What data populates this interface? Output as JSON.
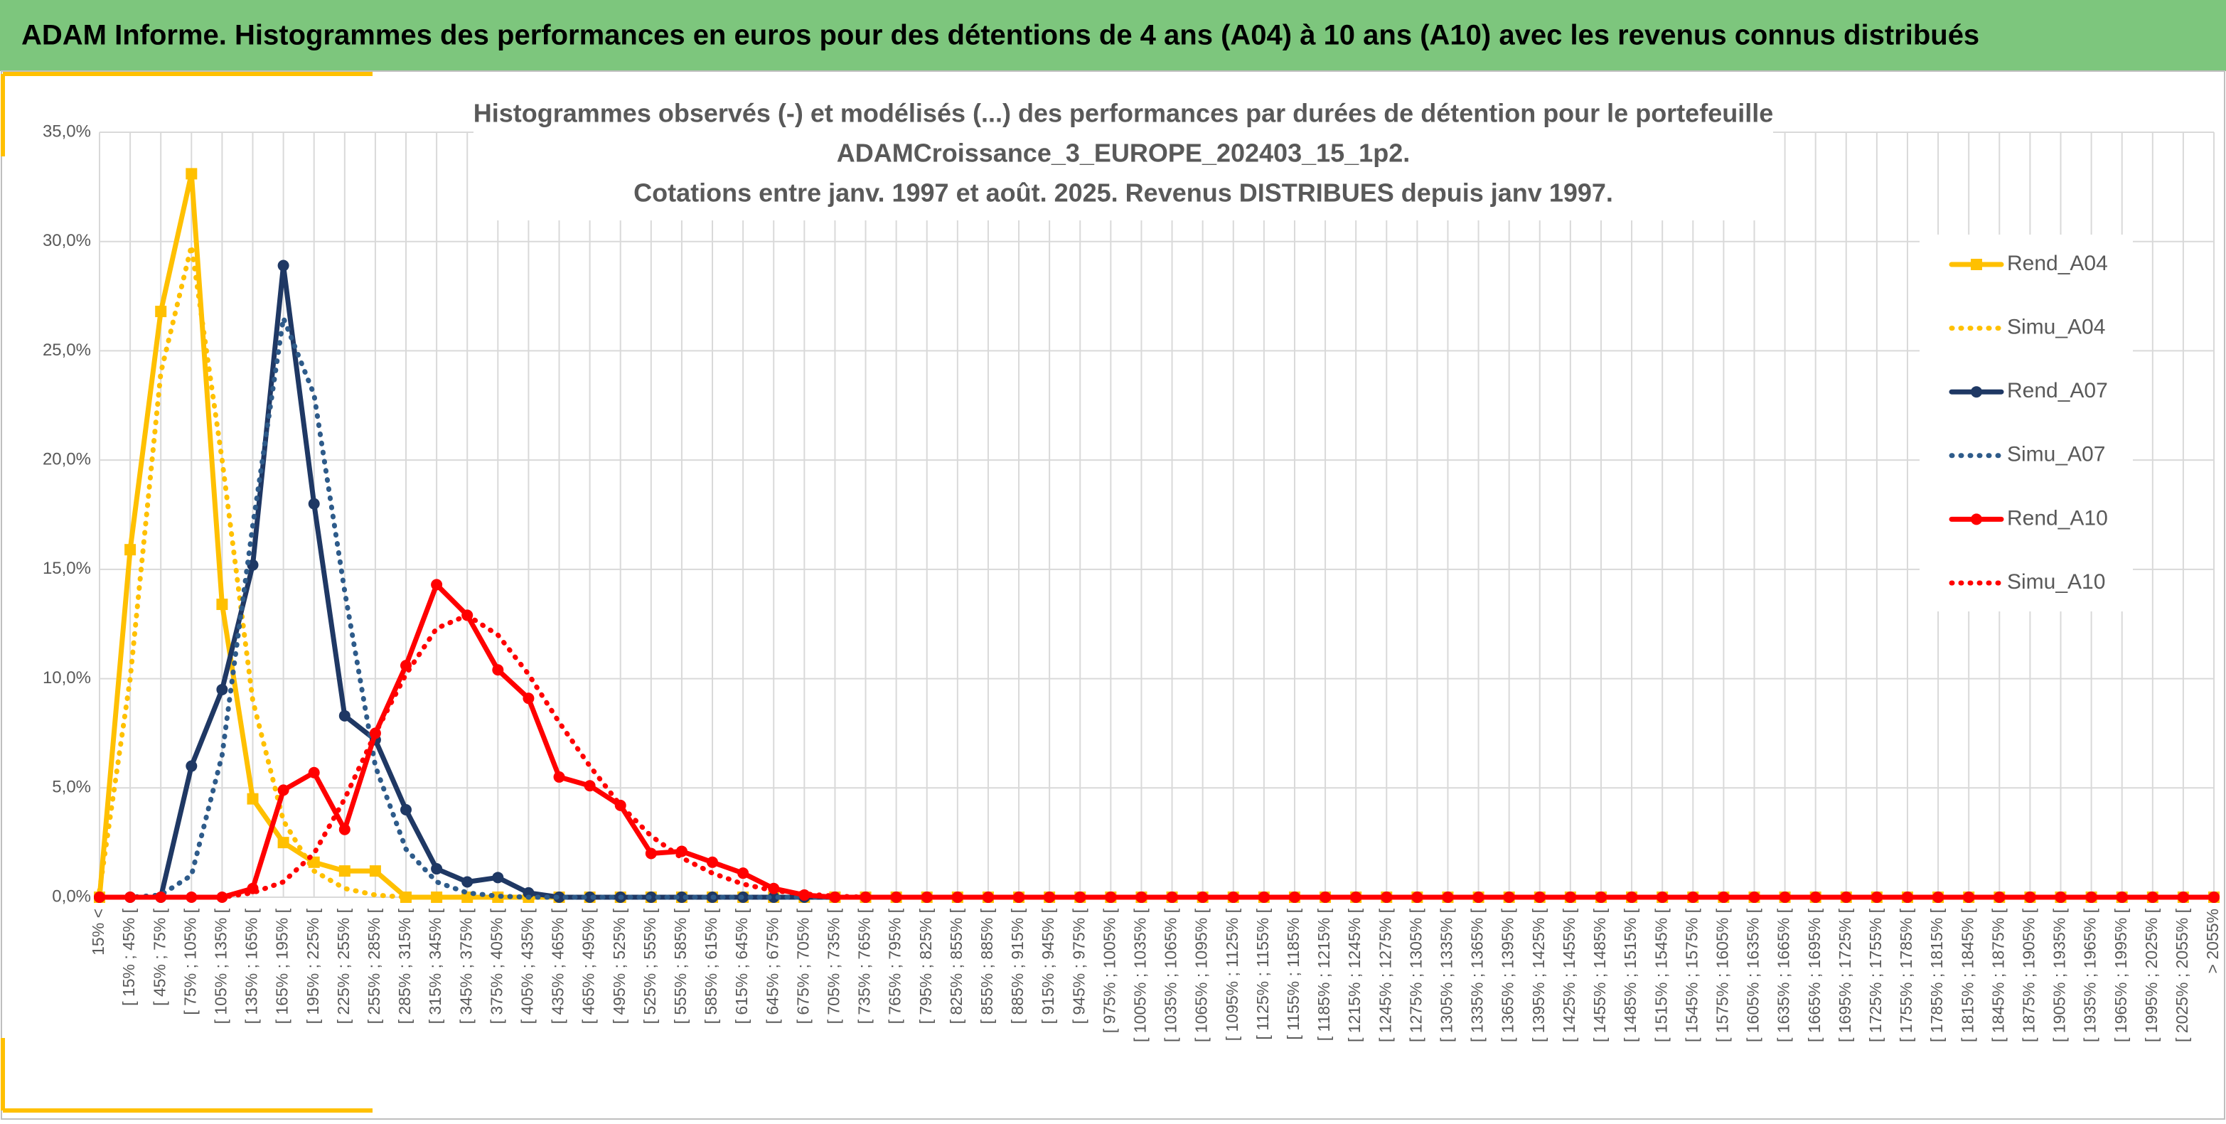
{
  "header": {
    "title": "ADAM Informe. Histogrammes des performances en euros pour des détentions de 4 ans (A04) à 10 ans (A10) avec les revenus connus distribués"
  },
  "chart_data": {
    "type": "line",
    "title": [
      "Histogrammes observés (-) et modélisés (...) des performances par durées de détention pour le portefeuille",
      "ADAMCroissance_3_EUROPE_202403_15_1p2.",
      "Cotations entre janv. 1997 et août. 2025. Revenus DISTRIBUES depuis janv 1997."
    ],
    "categories": [
      "15% <",
      "[ 15% ; 45% [",
      "[ 45% ; 75% [",
      "[ 75% ; 105% [",
      "[ 105% ; 135% [",
      "[ 135% ; 165% [",
      "[ 165% ; 195% [",
      "[ 195% ; 225% [",
      "[ 225% ; 255% [",
      "[ 255% ; 285% [",
      "[ 285% ; 315% [",
      "[ 315% ; 345% [",
      "[ 345% ; 375% [",
      "[ 375% ; 405% [",
      "[ 405% ; 435% [",
      "[ 435% ; 465% [",
      "[ 465% ; 495% [",
      "[ 495% ; 525% [",
      "[ 525% ; 555% [",
      "[ 555% ; 585% [",
      "[ 585% ; 615% [",
      "[ 615% ; 645% [",
      "[ 645% ; 675% [",
      "[ 675% ; 705% [",
      "[ 705% ; 735% [",
      "[ 735% ; 765% [",
      "[ 765% ; 795% [",
      "[ 795% ; 825% [",
      "[ 825% ; 855% [",
      "[ 855% ; 885% [",
      "[ 885% ; 915% [",
      "[ 915% ; 945% [",
      "[ 945% ; 975% [",
      "[ 975% ; 1005% [",
      "[ 1005% ; 1035% [",
      "[ 1035% ; 1065% [",
      "[ 1065% ; 1095% [",
      "[ 1095% ; 1125% [",
      "[ 1125% ; 1155% [",
      "[ 1155% ; 1185% [",
      "[ 1185% ; 1215% [",
      "[ 1215% ; 1245% [",
      "[ 1245% ; 1275% [",
      "[ 1275% ; 1305% [",
      "[ 1305% ; 1335% [",
      "[ 1335% ; 1365% [",
      "[ 1365% ; 1395% [",
      "[ 1395% ; 1425% [",
      "[ 1425% ; 1455% [",
      "[ 1455% ; 1485% [",
      "[ 1485% ; 1515% [",
      "[ 1515% ; 1545% [",
      "[ 1545% ; 1575% [",
      "[ 1575% ; 1605% [",
      "[ 1605% ; 1635% [",
      "[ 1635% ; 1665% [",
      "[ 1665% ; 1695% [",
      "[ 1695% ; 1725% [",
      "[ 1725% ; 1755% [",
      "[ 1755% ; 1785% [",
      "[ 1785% ; 1815% [",
      "[ 1815% ; 1845% [",
      "[ 1845% ; 1875% [",
      "[ 1875% ; 1905% [",
      "[ 1905% ; 1935% [",
      "[ 1935% ; 1965% [",
      "[ 1965% ; 1995% [",
      "[ 1995% ; 2025% [",
      "[ 2025% ; 2055% [",
      "> 2055%"
    ],
    "series": [
      {
        "name": "Rend_A04",
        "color": "#ffc000",
        "dash": "solid",
        "marker": "square",
        "values": [
          0,
          15.9,
          26.8,
          33.1,
          13.4,
          4.5,
          2.5,
          1.6,
          1.2,
          1.2,
          0,
          0,
          0,
          0,
          0,
          0,
          0,
          0,
          0,
          0,
          0,
          0,
          0,
          0,
          0,
          0,
          0,
          0,
          0,
          0,
          0,
          0,
          0,
          0,
          0,
          0,
          0,
          0,
          0,
          0,
          0,
          0,
          0,
          0,
          0,
          0,
          0,
          0,
          0,
          0,
          0,
          0,
          0,
          0,
          0,
          0,
          0,
          0,
          0,
          0,
          0,
          0,
          0,
          0,
          0,
          0,
          0,
          0,
          0,
          0
        ]
      },
      {
        "name": "Simu_A04",
        "color": "#ffc000",
        "dash": "dotted",
        "values": [
          0.3,
          10,
          24,
          29.8,
          20,
          9,
          3.5,
          1.2,
          0.4,
          0.1,
          0,
          0,
          0,
          0,
          0,
          0,
          0,
          0,
          0,
          0,
          0,
          0,
          0,
          0,
          0,
          0,
          0,
          0,
          0,
          0,
          0,
          0,
          0,
          0,
          0,
          0,
          0,
          0,
          0,
          0,
          0,
          0,
          0,
          0,
          0,
          0,
          0,
          0,
          0,
          0,
          0,
          0,
          0,
          0,
          0,
          0,
          0,
          0,
          0,
          0,
          0,
          0,
          0,
          0,
          0,
          0,
          0,
          0,
          0,
          0
        ]
      },
      {
        "name": "Rend_A07",
        "color": "#1f3864",
        "dash": "solid",
        "marker": "circle",
        "values": [
          0,
          0,
          0,
          6.0,
          9.5,
          15.2,
          28.9,
          18.0,
          8.3,
          7.2,
          4.0,
          1.3,
          0.7,
          0.9,
          0.2,
          0,
          0,
          0,
          0,
          0,
          0,
          0,
          0,
          0,
          0,
          0,
          0,
          0,
          0,
          0,
          0,
          0,
          0,
          0,
          0,
          0,
          0,
          0,
          0,
          0,
          0,
          0,
          0,
          0,
          0,
          0,
          0,
          0,
          0,
          0,
          0,
          0,
          0,
          0,
          0,
          0,
          0,
          0,
          0,
          0,
          0,
          0,
          0,
          0,
          0,
          0,
          0,
          0,
          0,
          0
        ]
      },
      {
        "name": "Simu_A07",
        "color": "#2e5b8a",
        "dash": "dotted",
        "values": [
          0,
          0,
          0.1,
          1,
          6.5,
          17,
          26.5,
          23,
          14,
          6,
          2.2,
          0.7,
          0.2,
          0.05,
          0,
          0,
          0,
          0,
          0,
          0,
          0,
          0,
          0,
          0,
          0,
          0,
          0,
          0,
          0,
          0,
          0,
          0,
          0,
          0,
          0,
          0,
          0,
          0,
          0,
          0,
          0,
          0,
          0,
          0,
          0,
          0,
          0,
          0,
          0,
          0,
          0,
          0,
          0,
          0,
          0,
          0,
          0,
          0,
          0,
          0,
          0,
          0,
          0,
          0,
          0,
          0,
          0,
          0,
          0,
          0
        ]
      },
      {
        "name": "Rend_A10",
        "color": "#ff0000",
        "dash": "solid",
        "marker": "circle",
        "values": [
          0,
          0,
          0,
          0,
          0,
          0.4,
          4.9,
          5.7,
          3.1,
          7.5,
          10.6,
          14.3,
          12.9,
          10.4,
          9.1,
          5.5,
          5.1,
          4.2,
          2.0,
          2.1,
          1.6,
          1.1,
          0.4,
          0.1,
          0,
          0,
          0,
          0,
          0,
          0,
          0,
          0,
          0,
          0,
          0,
          0,
          0,
          0,
          0,
          0,
          0,
          0,
          0,
          0,
          0,
          0,
          0,
          0,
          0,
          0,
          0,
          0,
          0,
          0,
          0,
          0,
          0,
          0,
          0,
          0,
          0,
          0,
          0,
          0,
          0,
          0,
          0,
          0,
          0,
          0
        ]
      },
      {
        "name": "Simu_A10",
        "color": "#ff0000",
        "dash": "dotted",
        "values": [
          0,
          0,
          0,
          0,
          0,
          0.2,
          0.7,
          2,
          4.5,
          7.5,
          10.2,
          12.3,
          12.9,
          12.0,
          10.2,
          8,
          6,
          4.2,
          2.8,
          1.8,
          1.1,
          0.6,
          0.3,
          0.15,
          0.05,
          0,
          0,
          0,
          0,
          0,
          0,
          0,
          0,
          0,
          0,
          0,
          0,
          0,
          0,
          0,
          0,
          0,
          0,
          0,
          0,
          0,
          0,
          0,
          0,
          0,
          0,
          0,
          0,
          0,
          0,
          0,
          0,
          0,
          0,
          0,
          0,
          0,
          0,
          0,
          0,
          0,
          0,
          0,
          0,
          0
        ]
      }
    ],
    "ylim": [
      0,
      35
    ],
    "yticks": [
      {
        "value": 0,
        "label": "0,0%"
      },
      {
        "value": 5,
        "label": "5,0%"
      },
      {
        "value": 10,
        "label": "10,0%"
      },
      {
        "value": 15,
        "label": "15,0%"
      },
      {
        "value": 20,
        "label": "20,0%"
      },
      {
        "value": 25,
        "label": "25,0%"
      },
      {
        "value": 30,
        "label": "30,0%"
      },
      {
        "value": 35,
        "label": "35,0%"
      }
    ],
    "grid": true,
    "legend": "right"
  }
}
